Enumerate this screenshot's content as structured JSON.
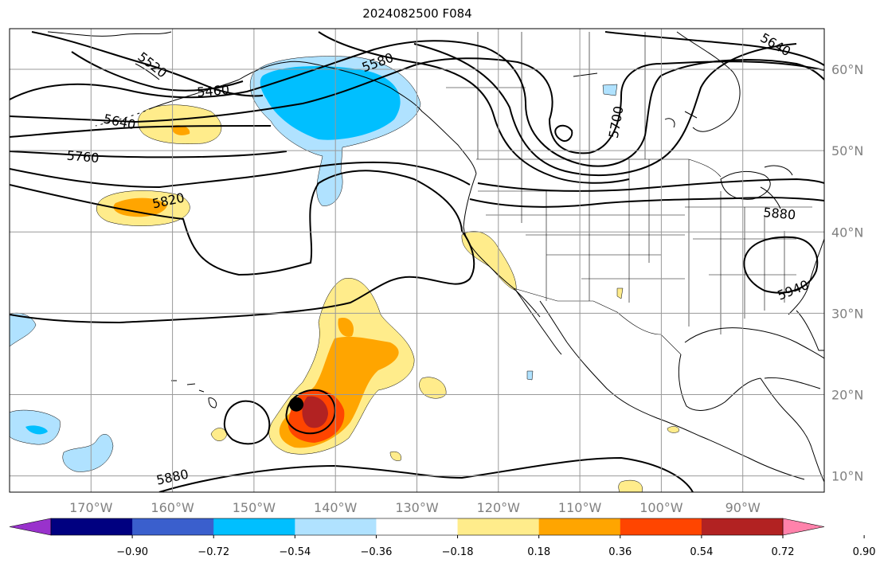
{
  "title": "2024082500 F084",
  "map": {
    "lon_range": [
      -180,
      -80
    ],
    "lat_range": [
      8,
      65
    ],
    "lon_ticks": [
      {
        "value": -170,
        "label": "170°W"
      },
      {
        "value": -160,
        "label": "160°W"
      },
      {
        "value": -150,
        "label": "150°W"
      },
      {
        "value": -140,
        "label": "140°W"
      },
      {
        "value": -130,
        "label": "130°W"
      },
      {
        "value": -120,
        "label": "120°W"
      },
      {
        "value": -110,
        "label": "110°W"
      },
      {
        "value": -100,
        "label": "100°W"
      },
      {
        "value": -90,
        "label": "90°W"
      }
    ],
    "lat_ticks": [
      {
        "value": 60,
        "label": "60°N"
      },
      {
        "value": 50,
        "label": "50°N"
      },
      {
        "value": 40,
        "label": "40°N"
      },
      {
        "value": 30,
        "label": "30°N"
      },
      {
        "value": 20,
        "label": "20°N"
      },
      {
        "value": 10,
        "label": "10°N"
      }
    ],
    "contour_labels": [
      {
        "text": "5520",
        "lon": -162.5,
        "lat": 60.5,
        "rot": 38
      },
      {
        "text": "5460",
        "lon": -155,
        "lat": 57.3,
        "rot": -5
      },
      {
        "text": "5580",
        "lon": -134.8,
        "lat": 60.8,
        "rot": -20
      },
      {
        "text": "5640",
        "lon": -166.5,
        "lat": 53.5,
        "rot": 12
      },
      {
        "text": "5760",
        "lon": -171,
        "lat": 49.2,
        "rot": 5
      },
      {
        "text": "5820",
        "lon": -160.5,
        "lat": 43.8,
        "rot": -12
      },
      {
        "text": "5700",
        "lon": -105.5,
        "lat": 53.5,
        "rot": -80
      },
      {
        "text": "5640",
        "lon": -86,
        "lat": 63,
        "rot": 30
      },
      {
        "text": "5880",
        "lon": -85.5,
        "lat": 42.2,
        "rot": 5
      },
      {
        "text": "5940",
        "lon": -83.8,
        "lat": 32.8,
        "rot": -22
      },
      {
        "text": "5880",
        "lon": -160,
        "lat": 9.8,
        "rot": -12
      }
    ],
    "storm_center": {
      "lon": -144.8,
      "lat": 18.8
    }
  },
  "colorbar": {
    "colors": [
      "#9932cc",
      "#000080",
      "#3a5fcd",
      "#00bfff",
      "#b0e2ff",
      "#ffffff",
      "#ffec8b",
      "#ffa500",
      "#ff4500",
      "#b22222",
      "#ff82ab"
    ],
    "ticks": [
      "−0.90",
      "−0.72",
      "−0.54",
      "−0.36",
      "−0.18",
      "0.18",
      "0.36",
      "0.54",
      "0.72",
      "0.90"
    ]
  },
  "colors": {
    "light_blue": "#b0e2ff",
    "blue": "#00bfff",
    "yellow": "#ffec8b",
    "orange": "#ffa500",
    "red_orange": "#ff4500",
    "dark_red": "#b22222"
  }
}
